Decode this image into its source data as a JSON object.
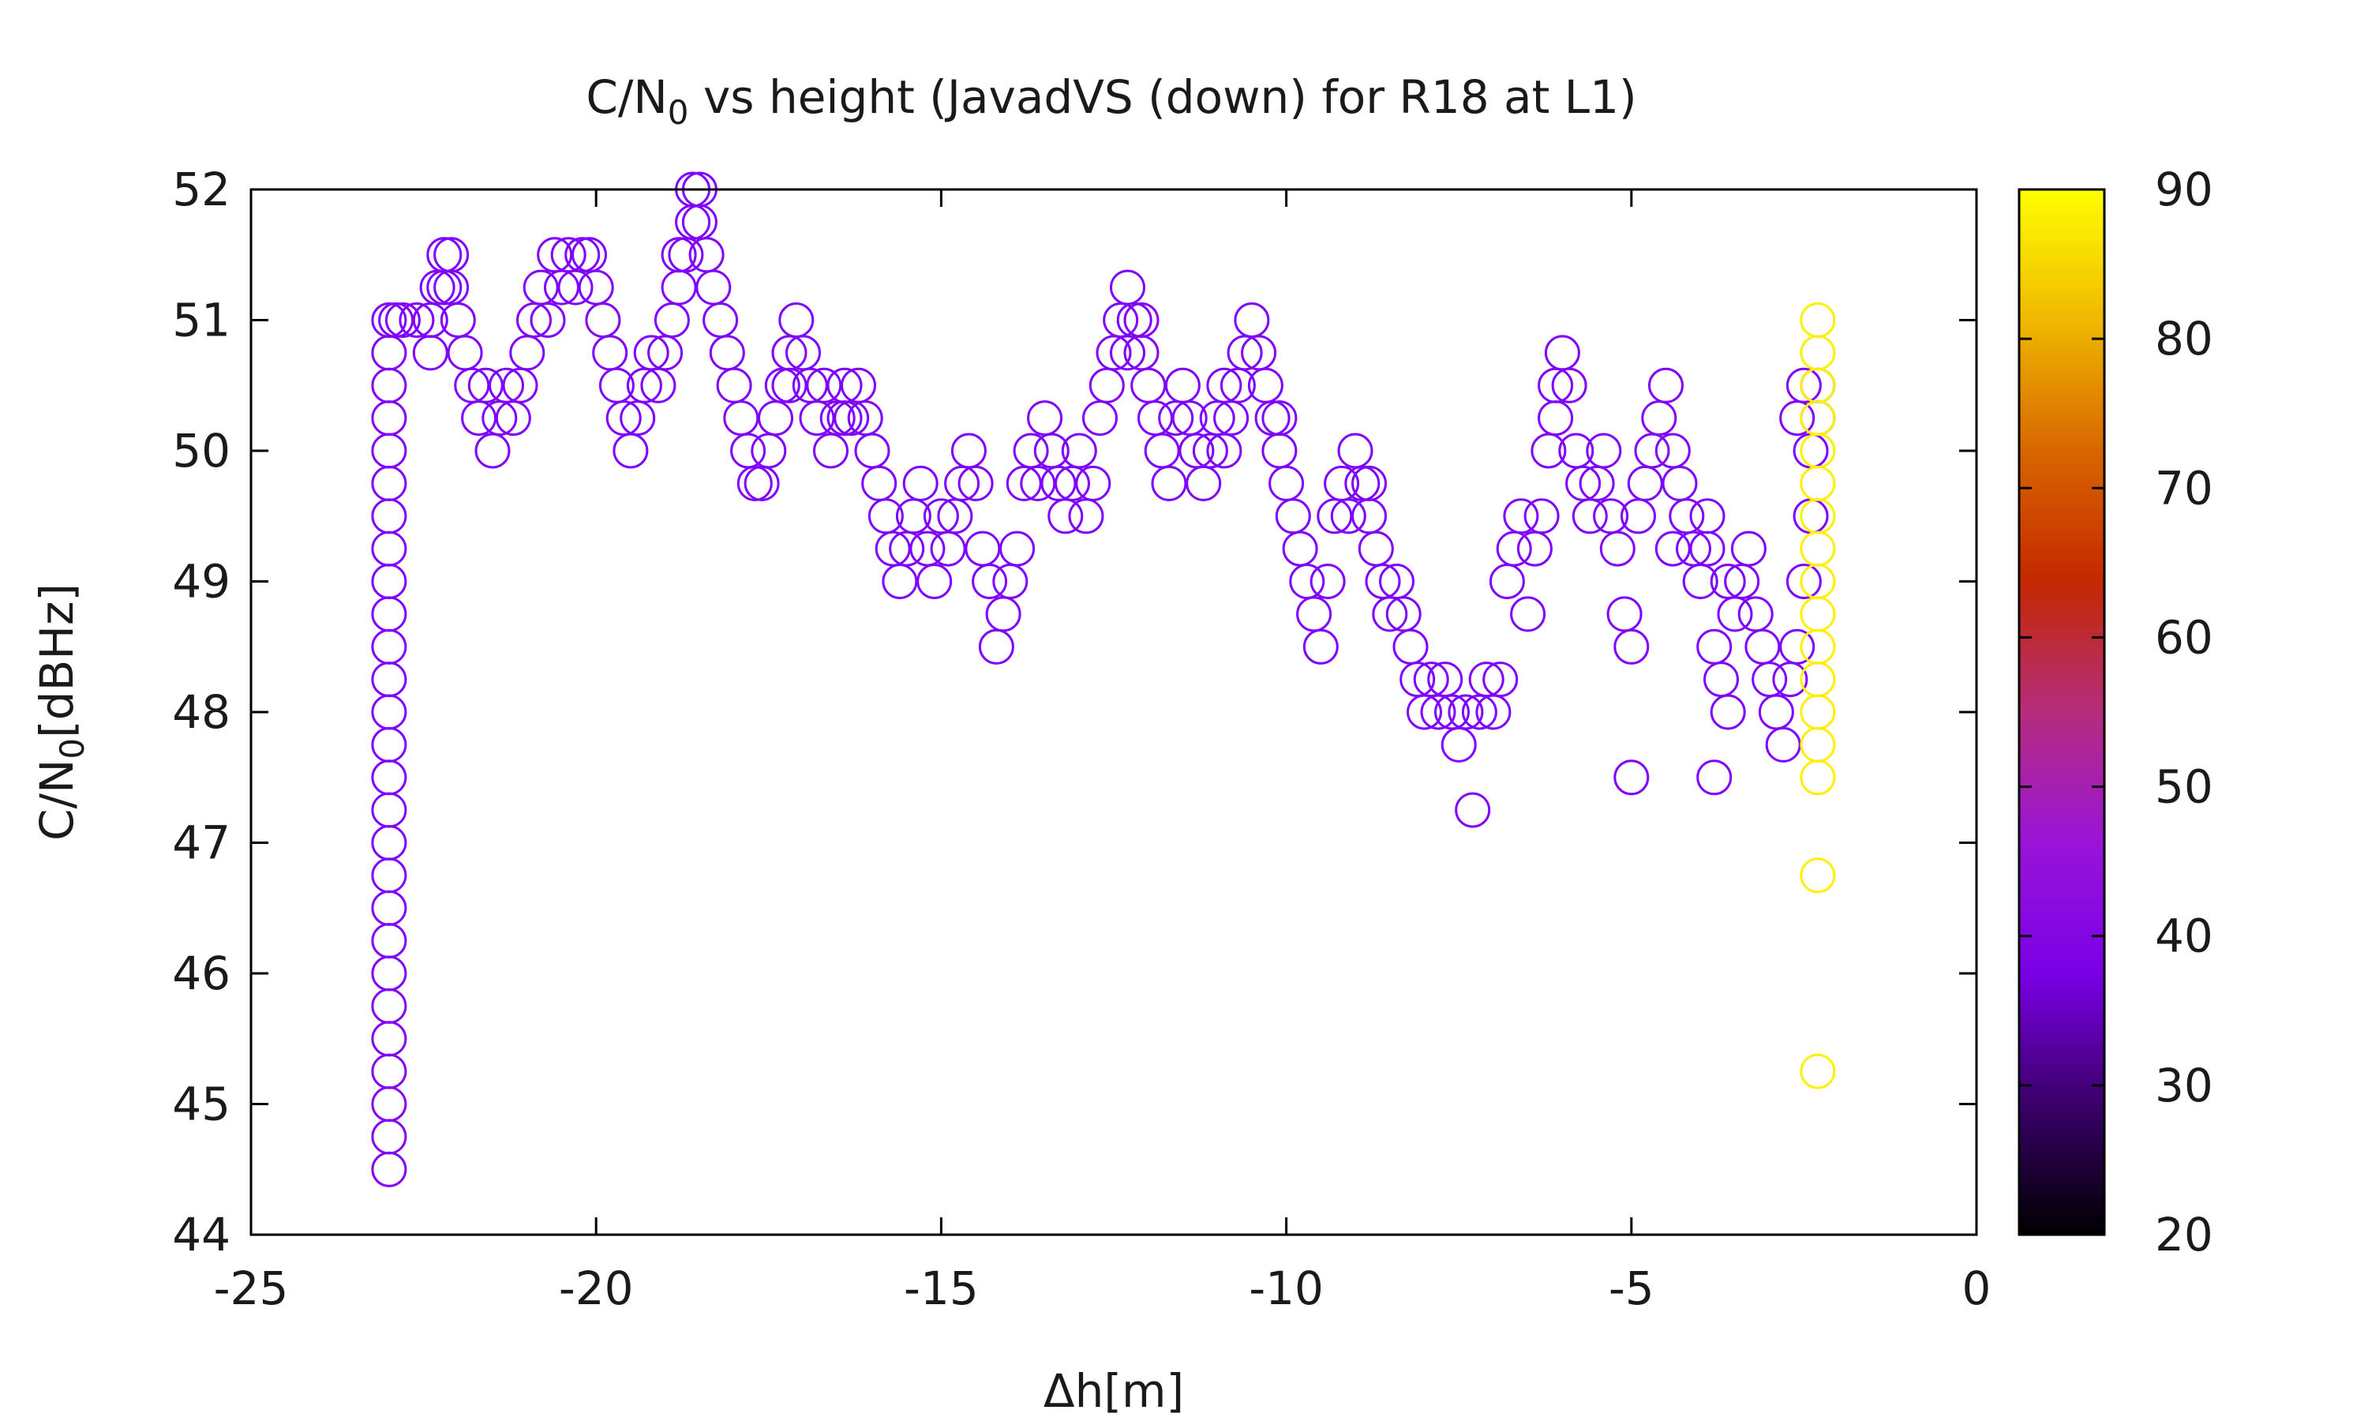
{
  "chart_data": {
    "type": "scatter",
    "title_main": "C/N",
    "title_sub": "0",
    "title_rest": " vs height (JavadVS (down) for R18 at L1)",
    "xlabel": "Δh[m]",
    "ylabel_main": "C/N",
    "ylabel_sub": "0",
    "ylabel_rest": "[dBHz]",
    "xlim": [
      -25,
      0
    ],
    "ylim": [
      44,
      52
    ],
    "xticks": [
      "-25",
      "-20",
      "-15",
      "-10",
      "-5",
      "0"
    ],
    "yticks": [
      "44",
      "45",
      "46",
      "47",
      "48",
      "49",
      "50",
      "51",
      "52"
    ],
    "grid": false,
    "colorbar": {
      "range": [
        20,
        90
      ],
      "ticks": [
        "20",
        "30",
        "40",
        "50",
        "60",
        "70",
        "80",
        "90"
      ],
      "palette": [
        "#000000",
        "#3a006a",
        "#7a00e6",
        "#9a14d8",
        "#b42d7c",
        "#c42800",
        "#d86600",
        "#f0b800",
        "#ffff00"
      ]
    },
    "marker": "open-circle",
    "series": [
      {
        "color": "#7f00ff",
        "points": [
          [
            -23,
            44.5
          ],
          [
            -23,
            44.75
          ],
          [
            -23,
            45
          ],
          [
            -23,
            45.25
          ],
          [
            -23,
            45.5
          ],
          [
            -23,
            45.75
          ],
          [
            -23,
            46
          ],
          [
            -23,
            46.25
          ],
          [
            -23,
            46.5
          ],
          [
            -23,
            46.75
          ],
          [
            -23,
            47
          ],
          [
            -23,
            47.25
          ],
          [
            -23,
            47.5
          ],
          [
            -23,
            47.75
          ],
          [
            -23,
            48
          ],
          [
            -23,
            48.25
          ],
          [
            -23,
            48.5
          ],
          [
            -23,
            48.75
          ],
          [
            -23,
            49
          ],
          [
            -23,
            49.25
          ],
          [
            -23,
            49.5
          ],
          [
            -23,
            49.75
          ],
          [
            -23,
            50
          ],
          [
            -23,
            50.25
          ],
          [
            -23,
            50.5
          ],
          [
            -23,
            50.75
          ],
          [
            -23,
            51
          ],
          [
            -22.9,
            51
          ],
          [
            -22.8,
            51
          ],
          [
            -22.6,
            51
          ],
          [
            -22.4,
            50.75
          ],
          [
            -22.4,
            51
          ],
          [
            -22.3,
            51.25
          ],
          [
            -22.2,
            51.5
          ],
          [
            -22.1,
            51.25
          ],
          [
            -22,
            51
          ],
          [
            -21.9,
            50.75
          ],
          [
            -21.8,
            50.5
          ],
          [
            -21.7,
            50.25
          ],
          [
            -21.6,
            50.5
          ],
          [
            -21.5,
            50
          ],
          [
            -21.4,
            50.25
          ],
          [
            -21.3,
            50.5
          ],
          [
            -21.2,
            50.25
          ],
          [
            -21.1,
            50.5
          ],
          [
            -21,
            50.75
          ],
          [
            -20.9,
            51
          ],
          [
            -20.8,
            51.25
          ],
          [
            -20.7,
            51
          ],
          [
            -20.6,
            51.5
          ],
          [
            -20.5,
            51.25
          ],
          [
            -20.4,
            51.5
          ],
          [
            -20.3,
            51.25
          ],
          [
            -20.2,
            51.5
          ],
          [
            -20.1,
            51.5
          ],
          [
            -20,
            51.25
          ],
          [
            -19.9,
            51
          ],
          [
            -19.8,
            50.75
          ],
          [
            -19.7,
            50.5
          ],
          [
            -19.6,
            50.25
          ],
          [
            -19.5,
            50
          ],
          [
            -19.4,
            50.25
          ],
          [
            -19.3,
            50.5
          ],
          [
            -19.2,
            50.75
          ],
          [
            -19.1,
            50.5
          ],
          [
            -19,
            50.75
          ],
          [
            -18.9,
            51
          ],
          [
            -18.8,
            51.25
          ],
          [
            -18.7,
            51.5
          ],
          [
            -18.6,
            51.75
          ],
          [
            -18.6,
            52
          ],
          [
            -18.5,
            51.75
          ],
          [
            -18.4,
            51.5
          ],
          [
            -18.3,
            51.25
          ],
          [
            -18.2,
            51
          ],
          [
            -18.1,
            50.75
          ],
          [
            -18,
            50.5
          ],
          [
            -17.9,
            50.25
          ],
          [
            -17.8,
            50
          ],
          [
            -17.7,
            49.75
          ],
          [
            -17.6,
            49.75
          ],
          [
            -17.5,
            50
          ],
          [
            -17.4,
            50.25
          ],
          [
            -17.3,
            50.5
          ],
          [
            -17.2,
            50.75
          ],
          [
            -17.1,
            51
          ],
          [
            -17,
            50.75
          ],
          [
            -16.9,
            50.5
          ],
          [
            -16.8,
            50.25
          ],
          [
            -16.7,
            50.5
          ],
          [
            -16.6,
            50
          ],
          [
            -16.5,
            50.25
          ],
          [
            -16.4,
            50.5
          ],
          [
            -16.3,
            50.25
          ],
          [
            -16.2,
            50.5
          ],
          [
            -16.1,
            50.25
          ],
          [
            -16,
            50
          ],
          [
            -15.9,
            49.75
          ],
          [
            -15.8,
            49.5
          ],
          [
            -15.7,
            49.25
          ],
          [
            -15.6,
            49
          ],
          [
            -15.5,
            49.25
          ],
          [
            -15.4,
            49.5
          ],
          [
            -15.3,
            49.75
          ],
          [
            -15.2,
            49.25
          ],
          [
            -15.1,
            49
          ],
          [
            -15,
            49.5
          ],
          [
            -14.9,
            49.25
          ],
          [
            -14.8,
            49.5
          ],
          [
            -14.7,
            49.75
          ],
          [
            -14.6,
            50
          ],
          [
            -14.5,
            49.75
          ],
          [
            -14.4,
            49.25
          ],
          [
            -14.3,
            49
          ],
          [
            -14.2,
            48.5
          ],
          [
            -14.1,
            48.75
          ],
          [
            -14,
            49
          ],
          [
            -13.9,
            49.25
          ],
          [
            -13.8,
            49.75
          ],
          [
            -13.7,
            50
          ],
          [
            -13.6,
            49.75
          ],
          [
            -13.5,
            50.25
          ],
          [
            -13.4,
            50
          ],
          [
            -13.3,
            49.75
          ],
          [
            -13.2,
            49.5
          ],
          [
            -13.1,
            49.75
          ],
          [
            -13,
            50
          ],
          [
            -12.9,
            49.5
          ],
          [
            -12.8,
            49.75
          ],
          [
            -12.7,
            50.25
          ],
          [
            -12.6,
            50.5
          ],
          [
            -12.5,
            50.75
          ],
          [
            -12.4,
            51
          ],
          [
            -12.3,
            51.25
          ],
          [
            -12.2,
            51
          ],
          [
            -12.1,
            50.75
          ],
          [
            -12,
            50.5
          ],
          [
            -11.9,
            50.25
          ],
          [
            -11.8,
            50
          ],
          [
            -11.7,
            49.75
          ],
          [
            -11.6,
            50.25
          ],
          [
            -11.5,
            50.5
          ],
          [
            -11.4,
            50.25
          ],
          [
            -11.3,
            50
          ],
          [
            -11.2,
            49.75
          ],
          [
            -11.1,
            50
          ],
          [
            -11,
            50.25
          ],
          [
            -10.9,
            50
          ],
          [
            -10.8,
            50.25
          ],
          [
            -10.7,
            50.5
          ],
          [
            -10.6,
            50.75
          ],
          [
            -10.5,
            51
          ],
          [
            -10.4,
            50.75
          ],
          [
            -10.3,
            50.5
          ],
          [
            -10.2,
            50.25
          ],
          [
            -10.1,
            50
          ],
          [
            -10,
            49.75
          ],
          [
            -9.9,
            49.5
          ],
          [
            -9.8,
            49.25
          ],
          [
            -9.7,
            49
          ],
          [
            -9.6,
            48.75
          ],
          [
            -9.5,
            48.5
          ],
          [
            -9.4,
            49
          ],
          [
            -9.3,
            49.5
          ],
          [
            -9.2,
            49.75
          ],
          [
            -9.1,
            49.5
          ],
          [
            -9,
            50
          ],
          [
            -8.9,
            49.75
          ],
          [
            -8.8,
            49.5
          ],
          [
            -8.7,
            49.25
          ],
          [
            -8.6,
            49
          ],
          [
            -8.5,
            48.75
          ],
          [
            -8.4,
            49
          ],
          [
            -8.3,
            48.75
          ],
          [
            -8.2,
            48.5
          ],
          [
            -8.1,
            48.25
          ],
          [
            -8,
            48
          ],
          [
            -7.9,
            48.25
          ],
          [
            -7.8,
            48
          ],
          [
            -7.7,
            48.25
          ],
          [
            -7.6,
            48
          ],
          [
            -7.5,
            47.75
          ],
          [
            -7.4,
            48
          ],
          [
            -7.3,
            47.25
          ],
          [
            -7.2,
            48
          ],
          [
            -7.1,
            48.25
          ],
          [
            -7,
            48
          ],
          [
            -6.9,
            48.25
          ],
          [
            -6.8,
            49
          ],
          [
            -6.7,
            49.25
          ],
          [
            -6.6,
            49.5
          ],
          [
            -6.5,
            48.75
          ],
          [
            -6.4,
            49.25
          ],
          [
            -6.3,
            49.5
          ],
          [
            -6.2,
            50
          ],
          [
            -6.1,
            50.25
          ],
          [
            -6,
            50.75
          ],
          [
            -5.9,
            50.5
          ],
          [
            -5.8,
            50
          ],
          [
            -5.7,
            49.75
          ],
          [
            -5.6,
            49.5
          ],
          [
            -5.5,
            49.75
          ],
          [
            -5.4,
            50
          ],
          [
            -5.3,
            49.5
          ],
          [
            -5.2,
            49.25
          ],
          [
            -5.1,
            48.75
          ],
          [
            -5,
            48.5
          ],
          [
            -4.9,
            49.5
          ],
          [
            -4.8,
            49.75
          ],
          [
            -4.7,
            50
          ],
          [
            -4.6,
            50.25
          ],
          [
            -4.5,
            50.5
          ],
          [
            -4.4,
            50
          ],
          [
            -4.3,
            49.75
          ],
          [
            -4.2,
            49.5
          ],
          [
            -4.1,
            49.25
          ],
          [
            -4,
            49
          ],
          [
            -3.9,
            49.5
          ],
          [
            -3.8,
            48.5
          ],
          [
            -3.7,
            48.25
          ],
          [
            -3.6,
            48
          ],
          [
            -3.5,
            48.75
          ],
          [
            -3.4,
            49
          ],
          [
            -3.3,
            49.25
          ],
          [
            -3.2,
            48.75
          ],
          [
            -3.1,
            48.5
          ],
          [
            -3,
            48.25
          ],
          [
            -2.9,
            48
          ],
          [
            -2.8,
            47.75
          ],
          [
            -2.7,
            48.25
          ],
          [
            -2.6,
            48.5
          ],
          [
            -2.5,
            49
          ],
          [
            -2.4,
            49.5
          ],
          [
            -2.4,
            50
          ],
          [
            -2.3,
            50.25
          ],
          [
            -2.3,
            50.5
          ],
          [
            -2.6,
            50.25
          ],
          [
            -2.5,
            50.5
          ],
          [
            -5,
            47.5
          ],
          [
            -3.8,
            47.5
          ],
          [
            -22.2,
            51.25
          ],
          [
            -22.1,
            51.5
          ],
          [
            -18.8,
            51.5
          ],
          [
            -18.5,
            52
          ],
          [
            -17.2,
            50.5
          ],
          [
            -16.4,
            50.25
          ],
          [
            -12.3,
            50.75
          ],
          [
            -12.1,
            51
          ],
          [
            -10.9,
            50.5
          ],
          [
            -10.1,
            50.25
          ],
          [
            -8.8,
            49.75
          ],
          [
            -6.1,
            50.5
          ],
          [
            -4.4,
            49.25
          ],
          [
            -3.9,
            49.25
          ],
          [
            -3.6,
            49
          ]
        ]
      },
      {
        "color": "#ffef00",
        "points": [
          [
            -2.3,
            45.25
          ],
          [
            -2.3,
            46.75
          ],
          [
            -2.3,
            47.5
          ],
          [
            -2.3,
            47.75
          ],
          [
            -2.3,
            48
          ],
          [
            -2.3,
            48.25
          ],
          [
            -2.3,
            48.5
          ],
          [
            -2.3,
            48.75
          ],
          [
            -2.3,
            49
          ],
          [
            -2.3,
            49.25
          ],
          [
            -2.3,
            49.5
          ],
          [
            -2.3,
            49.75
          ],
          [
            -2.3,
            50
          ],
          [
            -2.3,
            50.25
          ],
          [
            -2.3,
            50.5
          ],
          [
            -2.3,
            50.75
          ],
          [
            -2.3,
            51
          ]
        ]
      }
    ]
  }
}
